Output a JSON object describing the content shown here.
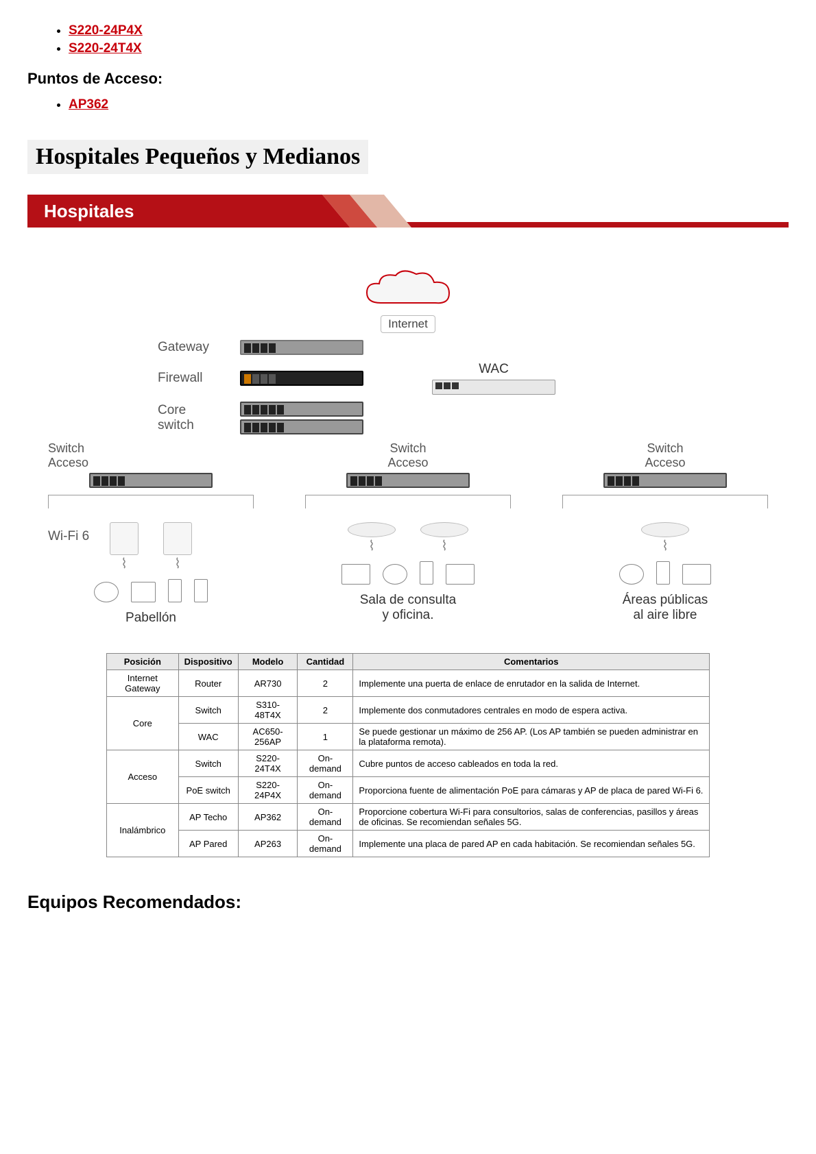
{
  "top_links": [
    "S220-24P4X",
    "S220-24T4X"
  ],
  "subhead1": "Puntos de Acceso:",
  "ap_links": [
    "AP362"
  ],
  "section_title": "Hospitales Pequeños y Medianos",
  "banner": {
    "text": "Hospitales",
    "color_main": "#b51016",
    "color_mid": "#ce4a3f",
    "color_light": "#e2b7a7"
  },
  "diagram": {
    "internet": "Internet",
    "rows": [
      {
        "label": "Gateway"
      },
      {
        "label": "Firewall"
      },
      {
        "label": "Core switch"
      }
    ],
    "wac": "WAC",
    "switch_acceso": "Switch\nAcceso",
    "wifi6": "Wi-Fi 6",
    "bottom_labels": [
      "Pabellón",
      "Sala de consulta\ny oficina.",
      "Áreas públicas\nal aire libre"
    ]
  },
  "table": {
    "headers": [
      "Posición",
      "Dispositivo",
      "Modelo",
      "Cantidad",
      "Comentarios"
    ],
    "rows": [
      {
        "pos": "Internet Gateway",
        "posrows": 1,
        "dev": "Router",
        "model": "AR730",
        "qty": "2",
        "comment": "Implemente una puerta de enlace de enrutador en la salida de Internet."
      },
      {
        "pos": "Core",
        "posrows": 2,
        "dev": "Switch",
        "model": "S310-48T4X",
        "qty": "2",
        "comment": "Implemente dos conmutadores centrales en modo de espera activa."
      },
      {
        "dev": "WAC",
        "model": "AC650-256AP",
        "qty": "1",
        "comment": "Se puede gestionar un máximo de 256 AP. (Los AP también se pueden administrar en la plataforma remota)."
      },
      {
        "pos": "Acceso",
        "posrows": 2,
        "dev": "Switch",
        "model": "S220-24T4X",
        "qty": "On-demand",
        "comment": "Cubre puntos de acceso cableados en toda la red."
      },
      {
        "dev": "PoE switch",
        "model": "S220-24P4X",
        "qty": "On-demand",
        "comment": "Proporciona fuente de alimentación PoE para cámaras y AP de placa de pared Wi-Fi 6."
      },
      {
        "pos": "Inalámbrico",
        "posrows": 2,
        "dev": "AP Techo",
        "model": "AP362",
        "qty": "On-demand",
        "comment": "Proporcione cobertura Wi-Fi para consultorios, salas de conferencias, pasillos y áreas de oficinas. Se recomiendan señales 5G."
      },
      {
        "dev": "AP Pared",
        "model": "AP263",
        "qty": "On-demand",
        "comment": "Implemente una placa de pared AP en cada habitación. Se recomiendan señales 5G."
      }
    ]
  },
  "equipos_heading": "Equipos Recomendados:"
}
